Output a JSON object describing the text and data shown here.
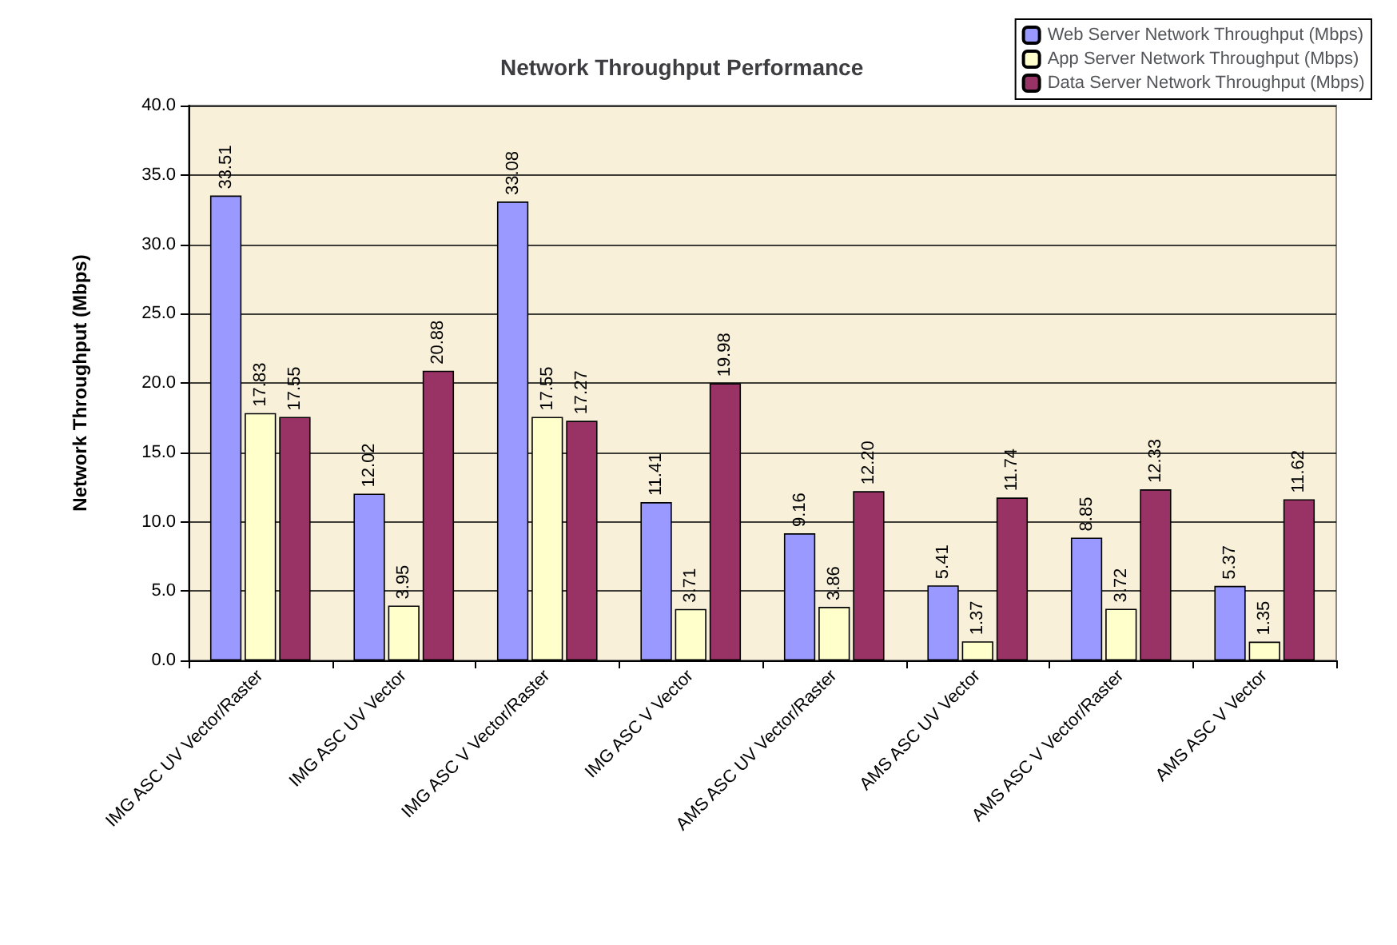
{
  "chart_data": {
    "type": "bar",
    "title": "Network Throughput Performance",
    "ylabel": "Network Throughput (Mbps)",
    "categories": [
      "IMG ASC UV Vector/Raster",
      "IMG ASC UV Vector",
      "IMG ASC V Vector/Raster",
      "IMG ASC V Vector",
      "AMS ASC UV Vector/Raster",
      "AMS ASC UV Vector",
      "AMS ASC V Vector/Raster",
      "AMS ASC V Vector"
    ],
    "series": [
      {
        "name": "Web Server Network Throughput (Mbps)",
        "color": "#9999ff",
        "values": [
          33.51,
          12.02,
          33.08,
          11.41,
          9.16,
          5.41,
          8.85,
          5.37
        ],
        "value_labels": [
          "33.51",
          "12.02",
          "33.08",
          "11.41",
          "9.16",
          "5.41",
          "8.85",
          "5.37"
        ]
      },
      {
        "name": "App Server Network Throughput (Mbps)",
        "color": "#ffffcc",
        "values": [
          17.83,
          3.95,
          17.55,
          3.71,
          3.86,
          1.37,
          3.72,
          1.35
        ],
        "value_labels": [
          "17.83",
          "3.95",
          "17.55",
          "3.71",
          "3.86",
          "1.37",
          "3.72",
          "1.35"
        ]
      },
      {
        "name": "Data Server Network Throughput (Mbps)",
        "color": "#993366",
        "values": [
          17.55,
          20.88,
          17.27,
          19.98,
          12.2,
          11.74,
          12.33,
          11.62
        ],
        "value_labels": [
          "17.55",
          "20.88",
          "17.27",
          "19.98",
          "12.20",
          "11.74",
          "12.33",
          "11.62"
        ]
      }
    ],
    "ylim": [
      0,
      40
    ],
    "yticks": [
      {
        "value": 0,
        "label": "0.0"
      },
      {
        "value": 5,
        "label": "5.0"
      },
      {
        "value": 10,
        "label": "10.0"
      },
      {
        "value": 15,
        "label": "15.0"
      },
      {
        "value": 20,
        "label": "20.0"
      },
      {
        "value": 25,
        "label": "25.0"
      },
      {
        "value": 30,
        "label": "30.0"
      },
      {
        "value": 35,
        "label": "35.0"
      },
      {
        "value": 40,
        "label": "40.0"
      }
    ],
    "grid": "y",
    "legend": "top right"
  }
}
